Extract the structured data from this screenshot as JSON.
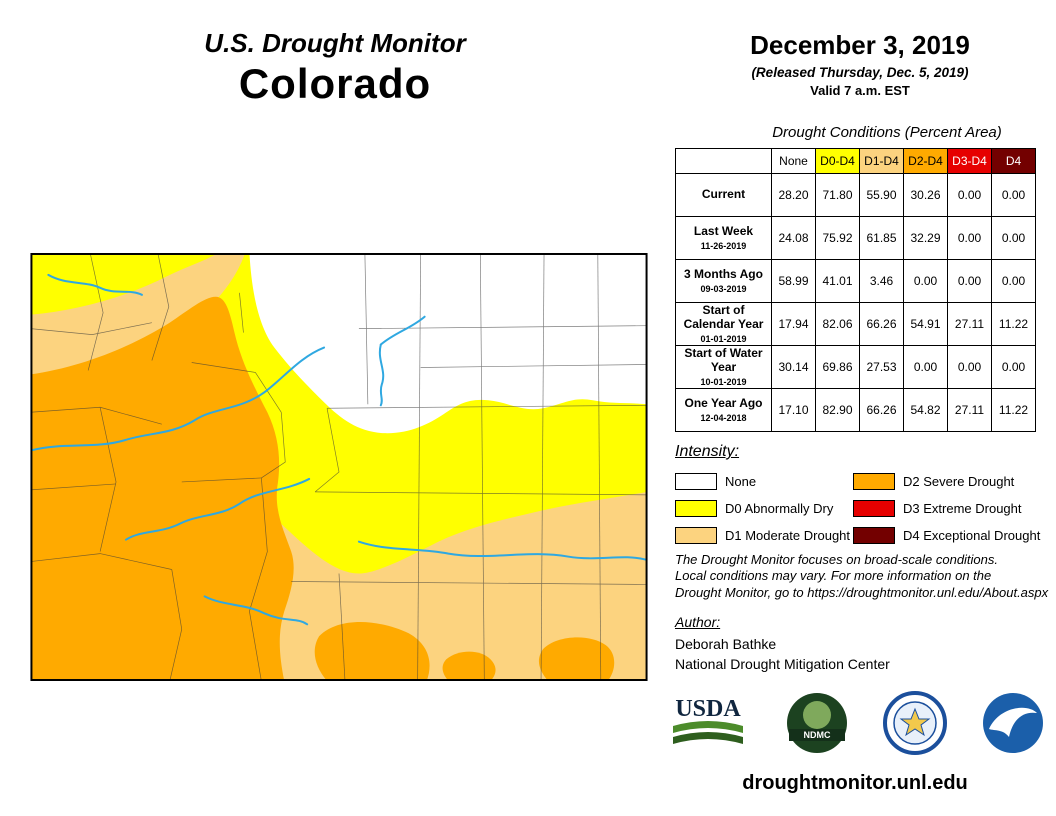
{
  "header": {
    "title": "U.S. Drought Monitor",
    "state": "Colorado",
    "date": "December 3, 2019",
    "released": "(Released Thursday, Dec. 5, 2019)",
    "valid": "Valid 7 a.m. EST"
  },
  "colors": {
    "none": "#FFFFFF",
    "d0": "#FFFF00",
    "d1": "#FCD37F",
    "d2": "#FFAA00",
    "d3": "#E60000",
    "d4": "#730000",
    "river": "#2FA8E1",
    "border": "#000000"
  },
  "table": {
    "caption": "Drought Conditions (Percent Area)",
    "columns": [
      {
        "label": "None",
        "color_key": "none",
        "text": "dark"
      },
      {
        "label": "D0-D4",
        "color_key": "d0",
        "text": "dark"
      },
      {
        "label": "D1-D4",
        "color_key": "d1",
        "text": "dark"
      },
      {
        "label": "D2-D4",
        "color_key": "d2",
        "text": "dark"
      },
      {
        "label": "D3-D4",
        "color_key": "d3",
        "text": "light"
      },
      {
        "label": "D4",
        "color_key": "d4",
        "text": "light"
      }
    ],
    "rows": [
      {
        "label": "Current",
        "sublabel": "",
        "values": [
          "28.20",
          "71.80",
          "55.90",
          "30.26",
          "0.00",
          "0.00"
        ]
      },
      {
        "label": "Last Week",
        "sublabel": "11-26-2019",
        "values": [
          "24.08",
          "75.92",
          "61.85",
          "32.29",
          "0.00",
          "0.00"
        ]
      },
      {
        "label": "3 Months Ago",
        "sublabel": "09-03-2019",
        "values": [
          "58.99",
          "41.01",
          "3.46",
          "0.00",
          "0.00",
          "0.00"
        ]
      },
      {
        "label": "Start of Calendar Year",
        "sublabel": "01-01-2019",
        "values": [
          "17.94",
          "82.06",
          "66.26",
          "54.91",
          "27.11",
          "11.22"
        ]
      },
      {
        "label": "Start of Water Year",
        "sublabel": "10-01-2019",
        "values": [
          "30.14",
          "69.86",
          "27.53",
          "0.00",
          "0.00",
          "0.00"
        ]
      },
      {
        "label": "One Year Ago",
        "sublabel": "12-04-2018",
        "values": [
          "17.10",
          "82.90",
          "66.26",
          "54.82",
          "27.11",
          "11.22"
        ]
      }
    ]
  },
  "legend": {
    "heading": "Intensity:",
    "items": [
      {
        "label": "None",
        "color_key": "none"
      },
      {
        "label": "D0 Abnormally Dry",
        "color_key": "d0"
      },
      {
        "label": "D1 Moderate Drought",
        "color_key": "d1"
      },
      {
        "label": "D2 Severe Drought",
        "color_key": "d2"
      },
      {
        "label": "D3 Extreme Drought",
        "color_key": "d3"
      },
      {
        "label": "D4 Exceptional Drought",
        "color_key": "d4"
      }
    ]
  },
  "notes": {
    "disclaimer_line1": "The Drought Monitor focuses on broad-scale conditions.",
    "disclaimer_line2": "Local conditions may vary. For more information on the",
    "disclaimer_line3": "Drought Monitor, go to https://droughtmonitor.unl.edu/About.aspx",
    "author_heading": "Author:",
    "author_name": "Deborah Bathke",
    "author_org": "National Drought Mitigation Center"
  },
  "logos": {
    "usda_text": "USDA",
    "ndmc_text": "NDMC"
  },
  "footer": {
    "url": "droughtmonitor.unl.edu"
  }
}
